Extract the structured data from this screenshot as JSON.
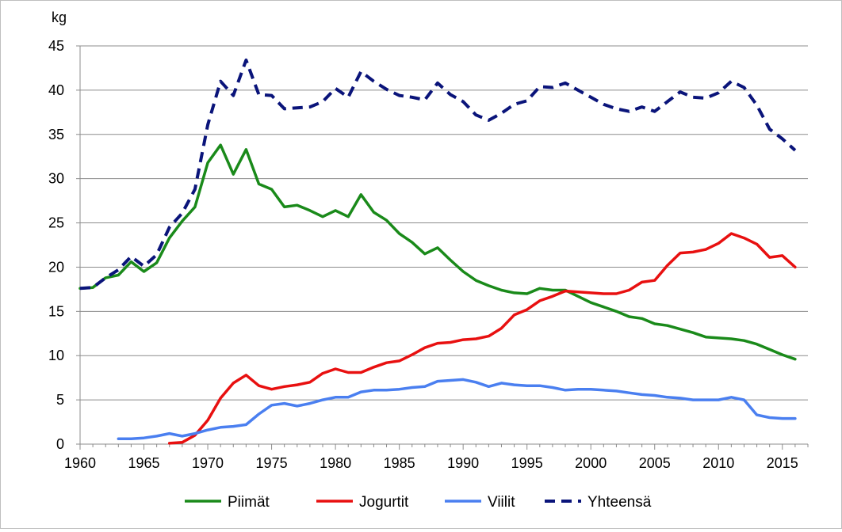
{
  "chart_data": {
    "type": "line",
    "title": "",
    "ylabel": "kg",
    "xlabel": "",
    "xlim": [
      1960,
      2017
    ],
    "ylim": [
      0,
      45
    ],
    "x_ticks": [
      1960,
      1965,
      1970,
      1975,
      1980,
      1985,
      1990,
      1995,
      2000,
      2005,
      2010,
      2015
    ],
    "y_ticks": [
      0,
      5,
      10,
      15,
      20,
      25,
      30,
      35,
      40,
      45
    ],
    "grid": "horizontal",
    "legend_position": "bottom",
    "series": [
      {
        "name": "Piimät",
        "color": "#1a8a1a",
        "dash": "solid",
        "x": [
          1960,
          1961,
          1962,
          1963,
          1964,
          1965,
          1966,
          1967,
          1968,
          1969,
          1970,
          1971,
          1972,
          1973,
          1974,
          1975,
          1976,
          1977,
          1978,
          1979,
          1980,
          1981,
          1982,
          1983,
          1984,
          1985,
          1986,
          1987,
          1988,
          1989,
          1990,
          1991,
          1992,
          1993,
          1994,
          1995,
          1996,
          1997,
          1998,
          1999,
          2000,
          2001,
          2002,
          2003,
          2004,
          2005,
          2006,
          2007,
          2008,
          2009,
          2010,
          2011,
          2012,
          2013,
          2014,
          2015,
          2016
        ],
        "y": [
          17.6,
          17.7,
          18.8,
          19.1,
          20.6,
          19.5,
          20.5,
          23.3,
          25.2,
          26.8,
          31.8,
          33.8,
          30.5,
          33.3,
          29.4,
          28.8,
          26.8,
          27.0,
          26.4,
          25.7,
          26.4,
          25.7,
          28.2,
          26.2,
          25.3,
          23.8,
          22.8,
          21.5,
          22.2,
          20.8,
          19.5,
          18.5,
          17.9,
          17.4,
          17.1,
          17.0,
          17.6,
          17.4,
          17.4,
          16.7,
          16.0,
          15.5,
          15.0,
          14.4,
          14.2,
          13.6,
          13.4,
          13.0,
          12.6,
          12.1,
          12.0,
          11.9,
          11.7,
          11.3,
          10.7,
          10.1,
          9.6
        ]
      },
      {
        "name": "Jogurtit",
        "color": "#e81010",
        "dash": "solid",
        "x": [
          1967,
          1968,
          1969,
          1970,
          1971,
          1972,
          1973,
          1974,
          1975,
          1976,
          1977,
          1978,
          1979,
          1980,
          1981,
          1982,
          1983,
          1984,
          1985,
          1986,
          1987,
          1988,
          1989,
          1990,
          1991,
          1992,
          1993,
          1994,
          1995,
          1996,
          1997,
          1998,
          1999,
          2000,
          2001,
          2002,
          2003,
          2004,
          2005,
          2006,
          2007,
          2008,
          2009,
          2010,
          2011,
          2012,
          2013,
          2014,
          2015,
          2016
        ],
        "y": [
          0.1,
          0.2,
          1.0,
          2.7,
          5.2,
          6.9,
          7.8,
          6.6,
          6.2,
          6.5,
          6.7,
          7.0,
          8.0,
          8.5,
          8.1,
          8.1,
          8.7,
          9.2,
          9.4,
          10.1,
          10.9,
          11.4,
          11.5,
          11.8,
          11.9,
          12.2,
          13.1,
          14.6,
          15.2,
          16.2,
          16.7,
          17.3,
          17.2,
          17.1,
          17.0,
          17.0,
          17.4,
          18.3,
          18.5,
          20.2,
          21.6,
          21.7,
          22.0,
          22.7,
          23.8,
          23.3,
          22.6,
          21.1,
          21.3,
          20.0
        ]
      },
      {
        "name": "Viilit",
        "color": "#4a7ff0",
        "dash": "solid",
        "x": [
          1963,
          1964,
          1965,
          1966,
          1967,
          1968,
          1969,
          1970,
          1971,
          1972,
          1973,
          1974,
          1975,
          1976,
          1977,
          1978,
          1979,
          1980,
          1981,
          1982,
          1983,
          1984,
          1985,
          1986,
          1987,
          1988,
          1989,
          1990,
          1991,
          1992,
          1993,
          1994,
          1995,
          1996,
          1997,
          1998,
          1999,
          2000,
          2001,
          2002,
          2003,
          2004,
          2005,
          2006,
          2007,
          2008,
          2009,
          2010,
          2011,
          2012,
          2013,
          2014,
          2015,
          2016
        ],
        "y": [
          0.6,
          0.6,
          0.7,
          0.9,
          1.2,
          0.9,
          1.2,
          1.6,
          1.9,
          2.0,
          2.2,
          3.4,
          4.4,
          4.6,
          4.3,
          4.6,
          5.0,
          5.3,
          5.3,
          5.9,
          6.1,
          6.1,
          6.2,
          6.4,
          6.5,
          7.1,
          7.2,
          7.3,
          7.0,
          6.5,
          6.9,
          6.7,
          6.6,
          6.6,
          6.4,
          6.1,
          6.2,
          6.2,
          6.1,
          6.0,
          5.8,
          5.6,
          5.5,
          5.3,
          5.2,
          5.0,
          5.0,
          5.0,
          5.3,
          5.0,
          3.3,
          3.0,
          2.9,
          2.9
        ]
      },
      {
        "name": "Yhteensä",
        "color": "#0a147a",
        "dash": "dashed",
        "x": [
          1960,
          1961,
          1962,
          1963,
          1964,
          1965,
          1966,
          1967,
          1968,
          1969,
          1970,
          1971,
          1972,
          1973,
          1974,
          1975,
          1976,
          1977,
          1978,
          1979,
          1980,
          1981,
          1982,
          1983,
          1984,
          1985,
          1986,
          1987,
          1988,
          1989,
          1990,
          1991,
          1992,
          1993,
          1994,
          1995,
          1996,
          1997,
          1998,
          1999,
          2000,
          2001,
          2002,
          2003,
          2004,
          2005,
          2006,
          2007,
          2008,
          2009,
          2010,
          2011,
          2012,
          2013,
          2014,
          2015,
          2016
        ],
        "y": [
          17.6,
          17.7,
          18.8,
          19.7,
          21.2,
          20.1,
          21.4,
          24.5,
          26.1,
          28.8,
          36.1,
          41.0,
          39.4,
          43.4,
          39.5,
          39.4,
          37.9,
          38.0,
          38.1,
          38.7,
          40.2,
          39.2,
          42.1,
          41.0,
          40.1,
          39.4,
          39.2,
          38.9,
          40.8,
          39.5,
          38.7,
          37.2,
          36.6,
          37.4,
          38.4,
          38.8,
          40.4,
          40.3,
          40.8,
          40.0,
          39.2,
          38.4,
          37.9,
          37.6,
          38.1,
          37.6,
          38.7,
          39.8,
          39.2,
          39.1,
          39.7,
          41.0,
          40.3,
          38.3,
          35.6,
          34.5,
          33.2
        ]
      }
    ]
  }
}
